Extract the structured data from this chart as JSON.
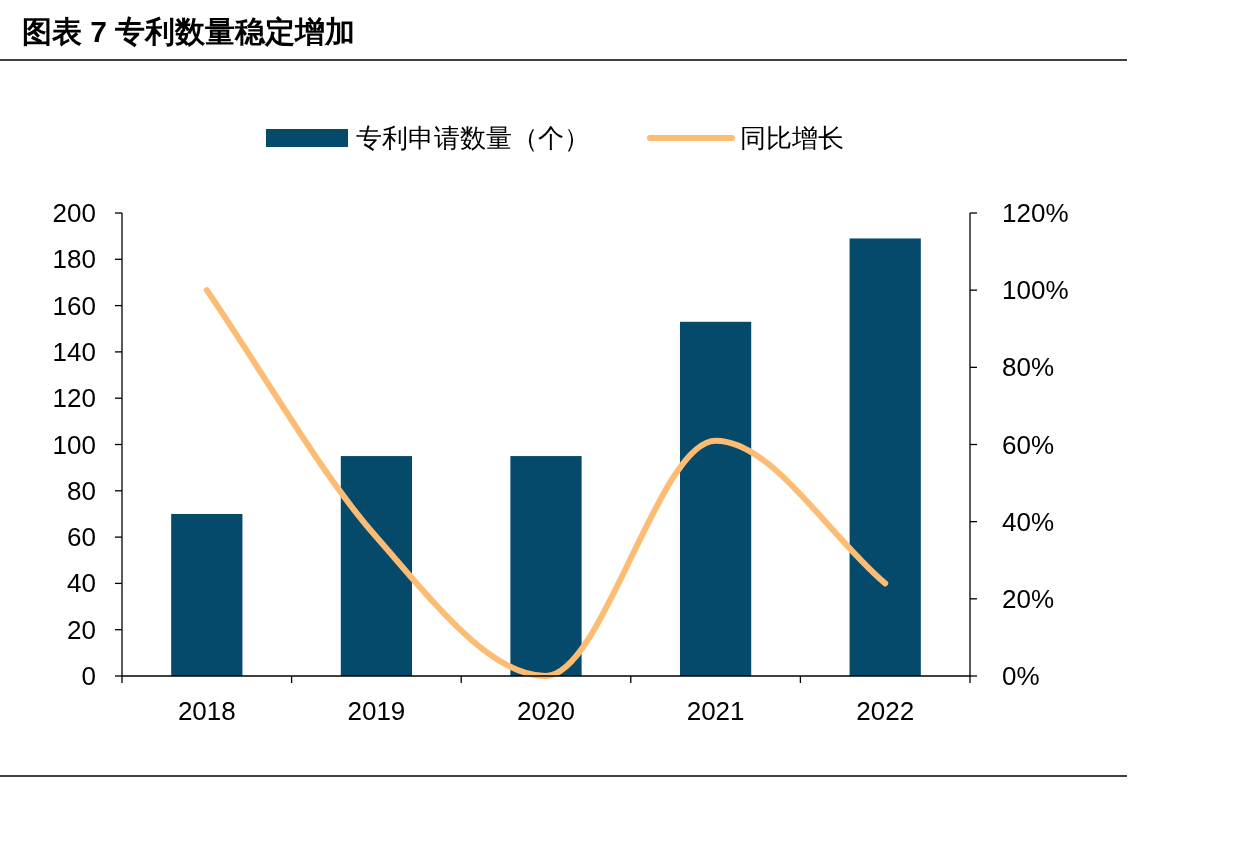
{
  "chart_data": {
    "type": "bar",
    "title": "图表 7  专利数量稳定增加",
    "categories": [
      "2018",
      "2019",
      "2020",
      "2021",
      "2022"
    ],
    "series": [
      {
        "name": "专利申请数量（个）",
        "color": "#05496b",
        "values": [
          70,
          95,
          95,
          153,
          189
        ]
      },
      {
        "name": "同比增长",
        "type": "line",
        "axis": "y2",
        "color": "#fcbc73",
        "values": [
          100,
          36,
          0,
          61,
          24
        ]
      }
    ],
    "ylim": [
      0,
      200
    ],
    "yticks": [
      0,
      20,
      40,
      60,
      80,
      100,
      120,
      140,
      160,
      180,
      200
    ],
    "y2lim": [
      0,
      120
    ],
    "y2ticks": [
      {
        "value": 0,
        "label": "0%"
      },
      {
        "value": 20,
        "label": "20%"
      },
      {
        "value": 40,
        "label": "40%"
      },
      {
        "value": 60,
        "label": "60%"
      },
      {
        "value": 80,
        "label": "80%"
      },
      {
        "value": 100,
        "label": "100%"
      },
      {
        "value": 120,
        "label": "120%"
      }
    ],
    "legend": "top",
    "grid": false,
    "marker": "none"
  }
}
